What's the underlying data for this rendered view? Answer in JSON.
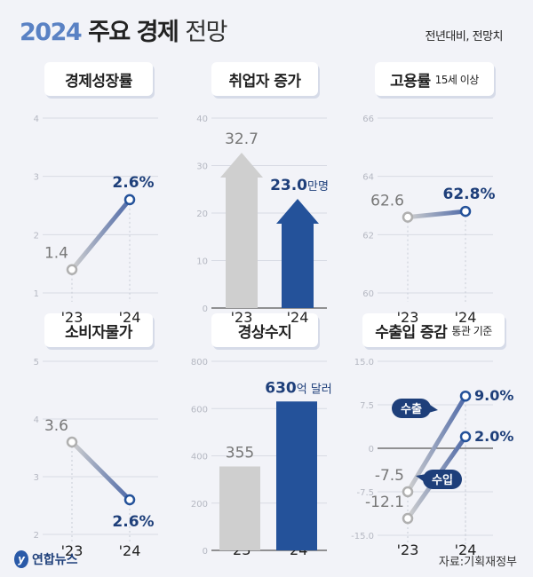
{
  "header": {
    "title_year": "2024",
    "title_bold": "주요 경제",
    "title_light": "전망",
    "subtitle": "전년대비, 전망치"
  },
  "footer": {
    "logo": "연합뉴스",
    "source": "자료:기획재정부"
  },
  "colors": {
    "navy": "#24529a",
    "label_navy": "#1e3f7a",
    "gray": "#cfcfcf",
    "gray_text": "#777777",
    "background": "#f2f3f8"
  },
  "chart_data": [
    {
      "type": "line",
      "title": "경제성장률",
      "note": "",
      "categories": [
        "'23",
        "'24"
      ],
      "values": [
        1.4,
        2.6
      ],
      "labels": [
        "1.4",
        "2.6%"
      ],
      "yticks": [
        "4",
        "3",
        "2",
        "1"
      ],
      "ylim": [
        1,
        4
      ],
      "grid": true
    },
    {
      "type": "bar",
      "style": "arrow",
      "title": "취업자 증가",
      "note": "",
      "categories": [
        "'23",
        "'24"
      ],
      "values": [
        32.7,
        23.0
      ],
      "labels": [
        "32.7",
        "23.0"
      ],
      "unit": "만명",
      "yticks": [
        "40",
        "30",
        "20",
        "10",
        "0"
      ],
      "ylim": [
        0,
        40
      ],
      "grid": true
    },
    {
      "type": "line",
      "title": "고용률",
      "note": "15세 이상",
      "categories": [
        "'23",
        "'24"
      ],
      "values": [
        62.6,
        62.8
      ],
      "labels": [
        "62.6",
        "62.8%"
      ],
      "yticks": [
        "66",
        "64",
        "62",
        "60"
      ],
      "ylim": [
        60,
        66
      ],
      "grid": true
    },
    {
      "type": "line",
      "title": "소비자물가",
      "note": "",
      "categories": [
        "'23",
        "'24"
      ],
      "values": [
        3.6,
        2.6
      ],
      "labels": [
        "3.6",
        "2.6%"
      ],
      "yticks": [
        "5",
        "4",
        "3",
        "2"
      ],
      "ylim": [
        2,
        5
      ],
      "grid": true
    },
    {
      "type": "bar",
      "title": "경상수지",
      "note": "",
      "categories": [
        "'23",
        "'24"
      ],
      "values": [
        355,
        630
      ],
      "labels": [
        "355",
        "630"
      ],
      "unit": "억 달러",
      "yticks": [
        "800",
        "600",
        "400",
        "200",
        "0"
      ],
      "ylim": [
        0,
        800
      ],
      "grid": true
    },
    {
      "type": "line",
      "title": "수출입 증감",
      "note": "통관 기준",
      "categories": [
        "'23",
        "'24"
      ],
      "series": [
        {
          "name": "수출",
          "values": [
            -7.5,
            9.0
          ],
          "labels": [
            "-7.5",
            "9.0%"
          ]
        },
        {
          "name": "수입",
          "values": [
            -12.1,
            2.0
          ],
          "labels": [
            "-12.1",
            "2.0%"
          ]
        }
      ],
      "yticks": [
        "15.0",
        "7.5",
        "0",
        "-7.5",
        "-15.0"
      ],
      "ylim": [
        -15,
        15
      ],
      "grid": true
    }
  ]
}
